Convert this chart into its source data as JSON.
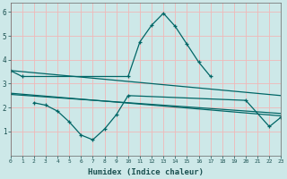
{
  "xlabel": "Humidex (Indice chaleur)",
  "bg_color": "#cde8e8",
  "grid_color": "#f0b8b8",
  "line_color": "#006666",
  "x": [
    0,
    1,
    2,
    3,
    4,
    5,
    6,
    7,
    8,
    9,
    10,
    11,
    12,
    13,
    14,
    15,
    16,
    17,
    18,
    19,
    20,
    21,
    22,
    23
  ],
  "line1_y": [
    3.55,
    3.3,
    null,
    null,
    null,
    null,
    null,
    null,
    null,
    null,
    3.3,
    4.75,
    5.45,
    5.95,
    5.4,
    4.65,
    3.9,
    3.3,
    null,
    null,
    null,
    null,
    null,
    null
  ],
  "line2_y": [
    null,
    null,
    2.2,
    2.1,
    1.85,
    1.4,
    0.85,
    0.65,
    1.1,
    1.7,
    2.5,
    null,
    null,
    null,
    null,
    null,
    null,
    null,
    null,
    null,
    2.3,
    null,
    1.2,
    1.6
  ],
  "line3_x": [
    0,
    23
  ],
  "line3_y": [
    3.55,
    2.5
  ],
  "line4_x": [
    0,
    23
  ],
  "line4_y": [
    2.6,
    1.65
  ],
  "line5_x": [
    0,
    23
  ],
  "line5_y": [
    2.55,
    1.75
  ],
  "ylim": [
    0,
    6.4
  ],
  "xlim": [
    0,
    23
  ],
  "yticks": [
    1,
    2,
    3,
    4,
    5,
    6
  ],
  "xticks": [
    0,
    1,
    2,
    3,
    4,
    5,
    6,
    7,
    8,
    9,
    10,
    11,
    12,
    13,
    14,
    15,
    16,
    17,
    18,
    19,
    20,
    21,
    22,
    23
  ]
}
